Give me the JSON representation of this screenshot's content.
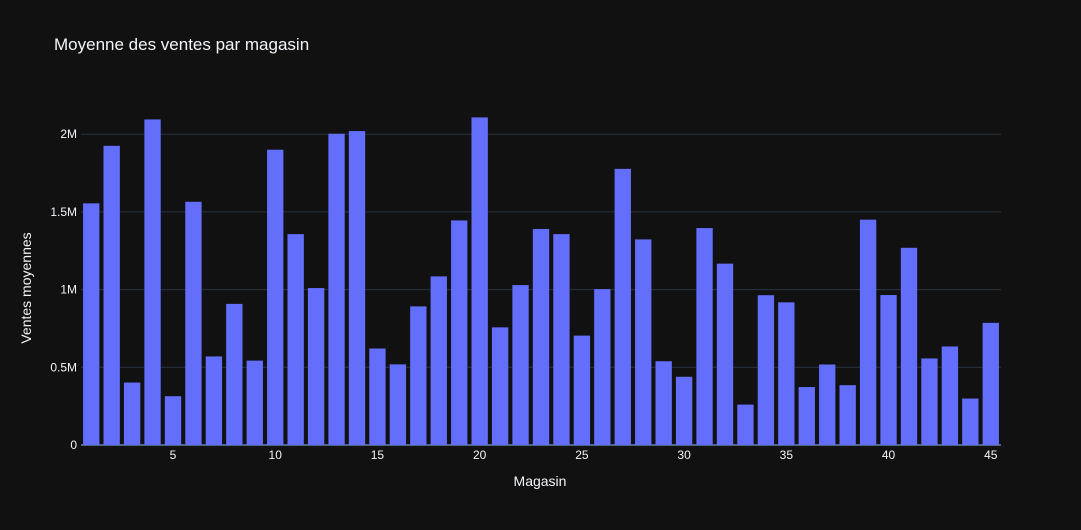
{
  "chart_data": {
    "type": "bar",
    "title": "Moyenne des ventes par magasin",
    "xlabel": "Magasin",
    "ylabel": "Ventes moyennes",
    "x": [
      1,
      2,
      3,
      4,
      5,
      6,
      7,
      8,
      9,
      10,
      11,
      12,
      13,
      14,
      15,
      16,
      17,
      18,
      19,
      20,
      21,
      22,
      23,
      24,
      25,
      26,
      27,
      28,
      29,
      30,
      31,
      32,
      33,
      34,
      35,
      36,
      37,
      38,
      39,
      40,
      41,
      42,
      43,
      44,
      45
    ],
    "values": [
      1555000,
      1925000,
      402000,
      2095000,
      314000,
      1565000,
      570000,
      908000,
      543000,
      1900000,
      1357000,
      1010000,
      2003000,
      2020000,
      621000,
      519000,
      892000,
      1085000,
      1445000,
      2108000,
      757000,
      1029000,
      1390000,
      1357000,
      704000,
      1003000,
      1777000,
      1323000,
      539000,
      439000,
      1396000,
      1167000,
      260000,
      964000,
      918000,
      373000,
      518000,
      385000,
      1450000,
      965000,
      1269000,
      557000,
      634000,
      299000,
      786000
    ],
    "x_ticks": [
      "5",
      "10",
      "15",
      "20",
      "25",
      "30",
      "35",
      "40",
      "45"
    ],
    "y_ticks": [
      "0",
      "0.5M",
      "1M",
      "1.5M",
      "2M"
    ],
    "ylim": [
      0,
      2220000
    ],
    "grid": true,
    "colors": {
      "background": "#111111",
      "bar": "#636efa",
      "grid": "#283442",
      "text": "#f2f5fa"
    }
  }
}
